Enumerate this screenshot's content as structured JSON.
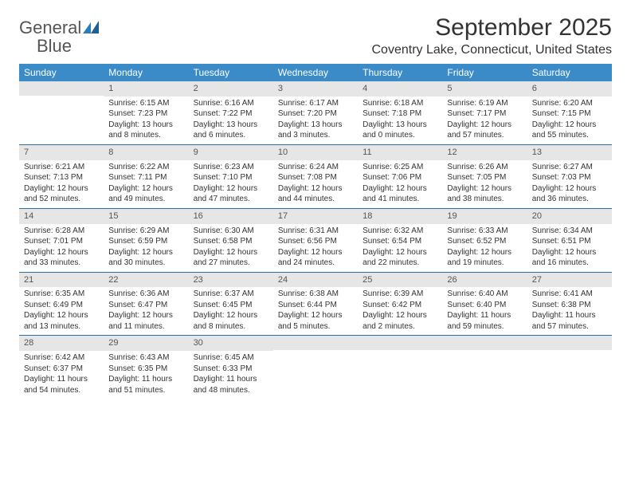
{
  "logo": {
    "word1": "General",
    "word2": "Blue"
  },
  "title": "September 2025",
  "location": "Coventry Lake, Connecticut, United States",
  "colors": {
    "header_bg": "#3b8bc9",
    "header_text": "#ffffff",
    "daynum_bg": "#e6e6e6",
    "week_border": "#2f6fa3",
    "text": "#333333",
    "logo_gray": "#555555",
    "logo_blue": "#2b7bbf"
  },
  "day_names": [
    "Sunday",
    "Monday",
    "Tuesday",
    "Wednesday",
    "Thursday",
    "Friday",
    "Saturday"
  ],
  "weeks": [
    [
      {
        "n": "",
        "sr": "",
        "ss": "",
        "dl": ""
      },
      {
        "n": "1",
        "sr": "Sunrise: 6:15 AM",
        "ss": "Sunset: 7:23 PM",
        "dl": "Daylight: 13 hours and 8 minutes."
      },
      {
        "n": "2",
        "sr": "Sunrise: 6:16 AM",
        "ss": "Sunset: 7:22 PM",
        "dl": "Daylight: 13 hours and 6 minutes."
      },
      {
        "n": "3",
        "sr": "Sunrise: 6:17 AM",
        "ss": "Sunset: 7:20 PM",
        "dl": "Daylight: 13 hours and 3 minutes."
      },
      {
        "n": "4",
        "sr": "Sunrise: 6:18 AM",
        "ss": "Sunset: 7:18 PM",
        "dl": "Daylight: 13 hours and 0 minutes."
      },
      {
        "n": "5",
        "sr": "Sunrise: 6:19 AM",
        "ss": "Sunset: 7:17 PM",
        "dl": "Daylight: 12 hours and 57 minutes."
      },
      {
        "n": "6",
        "sr": "Sunrise: 6:20 AM",
        "ss": "Sunset: 7:15 PM",
        "dl": "Daylight: 12 hours and 55 minutes."
      }
    ],
    [
      {
        "n": "7",
        "sr": "Sunrise: 6:21 AM",
        "ss": "Sunset: 7:13 PM",
        "dl": "Daylight: 12 hours and 52 minutes."
      },
      {
        "n": "8",
        "sr": "Sunrise: 6:22 AM",
        "ss": "Sunset: 7:11 PM",
        "dl": "Daylight: 12 hours and 49 minutes."
      },
      {
        "n": "9",
        "sr": "Sunrise: 6:23 AM",
        "ss": "Sunset: 7:10 PM",
        "dl": "Daylight: 12 hours and 47 minutes."
      },
      {
        "n": "10",
        "sr": "Sunrise: 6:24 AM",
        "ss": "Sunset: 7:08 PM",
        "dl": "Daylight: 12 hours and 44 minutes."
      },
      {
        "n": "11",
        "sr": "Sunrise: 6:25 AM",
        "ss": "Sunset: 7:06 PM",
        "dl": "Daylight: 12 hours and 41 minutes."
      },
      {
        "n": "12",
        "sr": "Sunrise: 6:26 AM",
        "ss": "Sunset: 7:05 PM",
        "dl": "Daylight: 12 hours and 38 minutes."
      },
      {
        "n": "13",
        "sr": "Sunrise: 6:27 AM",
        "ss": "Sunset: 7:03 PM",
        "dl": "Daylight: 12 hours and 36 minutes."
      }
    ],
    [
      {
        "n": "14",
        "sr": "Sunrise: 6:28 AM",
        "ss": "Sunset: 7:01 PM",
        "dl": "Daylight: 12 hours and 33 minutes."
      },
      {
        "n": "15",
        "sr": "Sunrise: 6:29 AM",
        "ss": "Sunset: 6:59 PM",
        "dl": "Daylight: 12 hours and 30 minutes."
      },
      {
        "n": "16",
        "sr": "Sunrise: 6:30 AM",
        "ss": "Sunset: 6:58 PM",
        "dl": "Daylight: 12 hours and 27 minutes."
      },
      {
        "n": "17",
        "sr": "Sunrise: 6:31 AM",
        "ss": "Sunset: 6:56 PM",
        "dl": "Daylight: 12 hours and 24 minutes."
      },
      {
        "n": "18",
        "sr": "Sunrise: 6:32 AM",
        "ss": "Sunset: 6:54 PM",
        "dl": "Daylight: 12 hours and 22 minutes."
      },
      {
        "n": "19",
        "sr": "Sunrise: 6:33 AM",
        "ss": "Sunset: 6:52 PM",
        "dl": "Daylight: 12 hours and 19 minutes."
      },
      {
        "n": "20",
        "sr": "Sunrise: 6:34 AM",
        "ss": "Sunset: 6:51 PM",
        "dl": "Daylight: 12 hours and 16 minutes."
      }
    ],
    [
      {
        "n": "21",
        "sr": "Sunrise: 6:35 AM",
        "ss": "Sunset: 6:49 PM",
        "dl": "Daylight: 12 hours and 13 minutes."
      },
      {
        "n": "22",
        "sr": "Sunrise: 6:36 AM",
        "ss": "Sunset: 6:47 PM",
        "dl": "Daylight: 12 hours and 11 minutes."
      },
      {
        "n": "23",
        "sr": "Sunrise: 6:37 AM",
        "ss": "Sunset: 6:45 PM",
        "dl": "Daylight: 12 hours and 8 minutes."
      },
      {
        "n": "24",
        "sr": "Sunrise: 6:38 AM",
        "ss": "Sunset: 6:44 PM",
        "dl": "Daylight: 12 hours and 5 minutes."
      },
      {
        "n": "25",
        "sr": "Sunrise: 6:39 AM",
        "ss": "Sunset: 6:42 PM",
        "dl": "Daylight: 12 hours and 2 minutes."
      },
      {
        "n": "26",
        "sr": "Sunrise: 6:40 AM",
        "ss": "Sunset: 6:40 PM",
        "dl": "Daylight: 11 hours and 59 minutes."
      },
      {
        "n": "27",
        "sr": "Sunrise: 6:41 AM",
        "ss": "Sunset: 6:38 PM",
        "dl": "Daylight: 11 hours and 57 minutes."
      }
    ],
    [
      {
        "n": "28",
        "sr": "Sunrise: 6:42 AM",
        "ss": "Sunset: 6:37 PM",
        "dl": "Daylight: 11 hours and 54 minutes."
      },
      {
        "n": "29",
        "sr": "Sunrise: 6:43 AM",
        "ss": "Sunset: 6:35 PM",
        "dl": "Daylight: 11 hours and 51 minutes."
      },
      {
        "n": "30",
        "sr": "Sunrise: 6:45 AM",
        "ss": "Sunset: 6:33 PM",
        "dl": "Daylight: 11 hours and 48 minutes."
      },
      {
        "n": "",
        "sr": "",
        "ss": "",
        "dl": ""
      },
      {
        "n": "",
        "sr": "",
        "ss": "",
        "dl": ""
      },
      {
        "n": "",
        "sr": "",
        "ss": "",
        "dl": ""
      },
      {
        "n": "",
        "sr": "",
        "ss": "",
        "dl": ""
      }
    ]
  ]
}
